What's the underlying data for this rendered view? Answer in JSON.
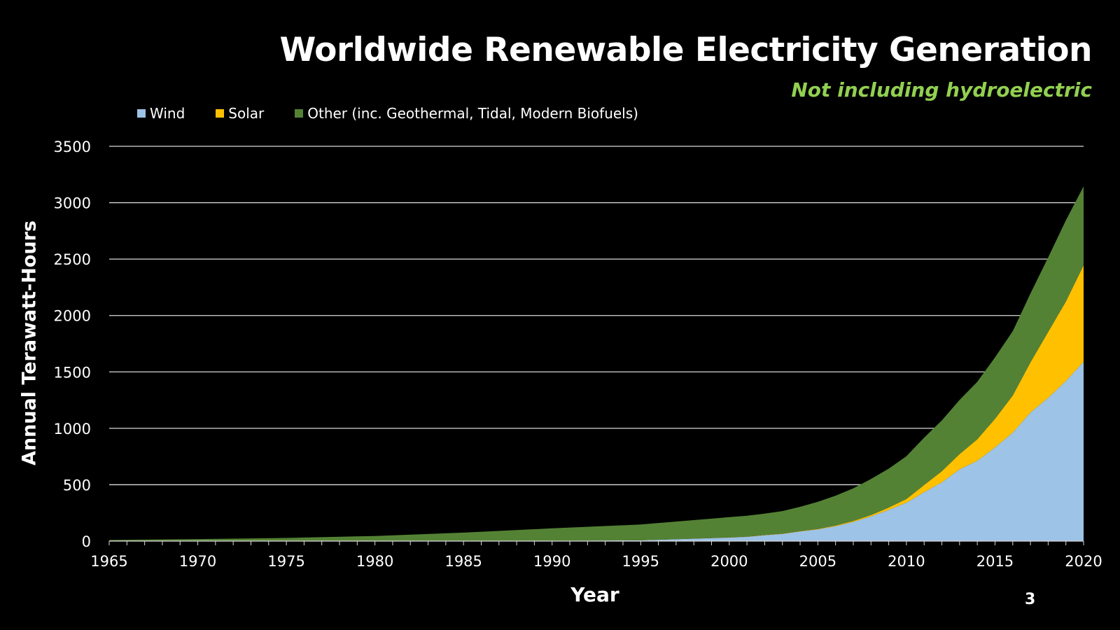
{
  "page_number": "3",
  "colors": {
    "background": "#000000",
    "grid": "#d9d9d9",
    "subtitle": "#92d050"
  },
  "chart_data": {
    "type": "area",
    "stacked": true,
    "title": "Worldwide Renewable Electricity Generation",
    "subtitle": "Not including hydroelectric",
    "xlabel": "Year",
    "ylabel": "Annual Terawatt-Hours",
    "xlim": [
      1965,
      2020
    ],
    "ylim": [
      0,
      3500
    ],
    "x_ticks": [
      "1965",
      "1970",
      "1975",
      "1980",
      "1985",
      "1990",
      "1995",
      "2000",
      "2005",
      "2010",
      "2015",
      "2020"
    ],
    "y_ticks": [
      "0",
      "500",
      "1000",
      "1500",
      "2000",
      "2500",
      "3000",
      "3500"
    ],
    "grid": true,
    "legend_position": "top",
    "x": [
      1965,
      1970,
      1975,
      1980,
      1985,
      1990,
      1995,
      2000,
      2001,
      2002,
      2003,
      2004,
      2005,
      2006,
      2007,
      2008,
      2009,
      2010,
      2011,
      2012,
      2013,
      2014,
      2015,
      2016,
      2017,
      2018,
      2019,
      2020
    ],
    "series": [
      {
        "name": "Wind",
        "color": "#9dc3e6",
        "values": [
          0,
          0,
          0,
          0,
          0,
          3,
          7,
          31,
          38,
          52,
          63,
          85,
          104,
          132,
          170,
          219,
          276,
          341,
          434,
          521,
          636,
          712,
          831,
          962,
          1140,
          1270,
          1420,
          1590
        ]
      },
      {
        "name": "Solar",
        "color": "#ffc000",
        "values": [
          0,
          0,
          0,
          0,
          0,
          0,
          0,
          1,
          2,
          2,
          3,
          4,
          4,
          6,
          8,
          12,
          21,
          32,
          63,
          99,
          135,
          190,
          253,
          329,
          445,
          585,
          704,
          855
        ]
      },
      {
        "name": "Other (inc. Geothermal, Tidal, Modern Biofuels)",
        "color": "#548235",
        "values": [
          10,
          18,
          28,
          45,
          75,
          110,
          140,
          180,
          185,
          190,
          200,
          215,
          240,
          265,
          290,
          320,
          345,
          380,
          420,
          450,
          480,
          510,
          545,
          570,
          610,
          660,
          720,
          700
        ]
      }
    ]
  }
}
